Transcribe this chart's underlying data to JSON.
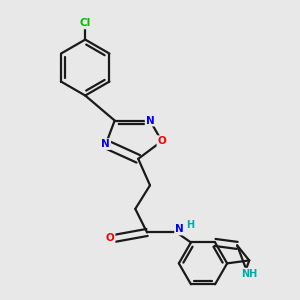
{
  "background_color": "#e8e8e8",
  "bond_color": "#1a1a1a",
  "atom_colors": {
    "N": "#0000ff",
    "O": "#ff0000",
    "Cl": "#00bb00",
    "NH": "#00aaaa",
    "C": "#1a1a1a"
  },
  "lw": 1.6
}
